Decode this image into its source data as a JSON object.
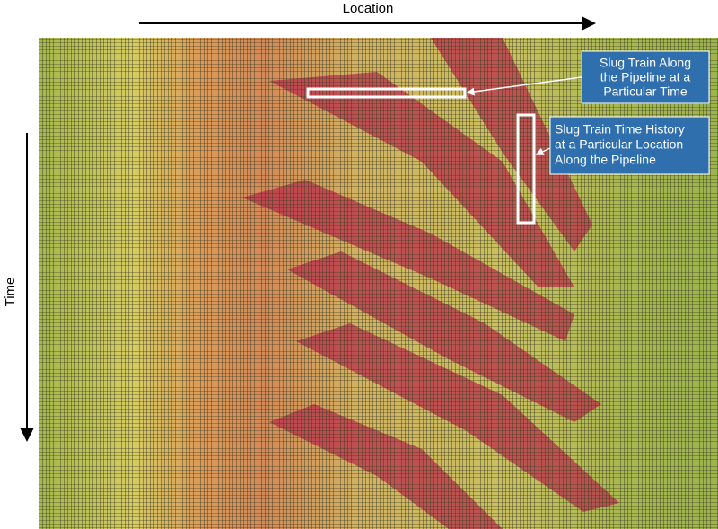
{
  "axes": {
    "x_label": "Location",
    "y_label": "Time"
  },
  "callouts": [
    {
      "lines": [
        "Slug Train Along",
        "the Pipeline at a",
        "Particular Time"
      ]
    },
    {
      "lines": [
        "Slug Train Time History",
        "at a Particular Location",
        "Along the Pipeline"
      ]
    }
  ]
}
